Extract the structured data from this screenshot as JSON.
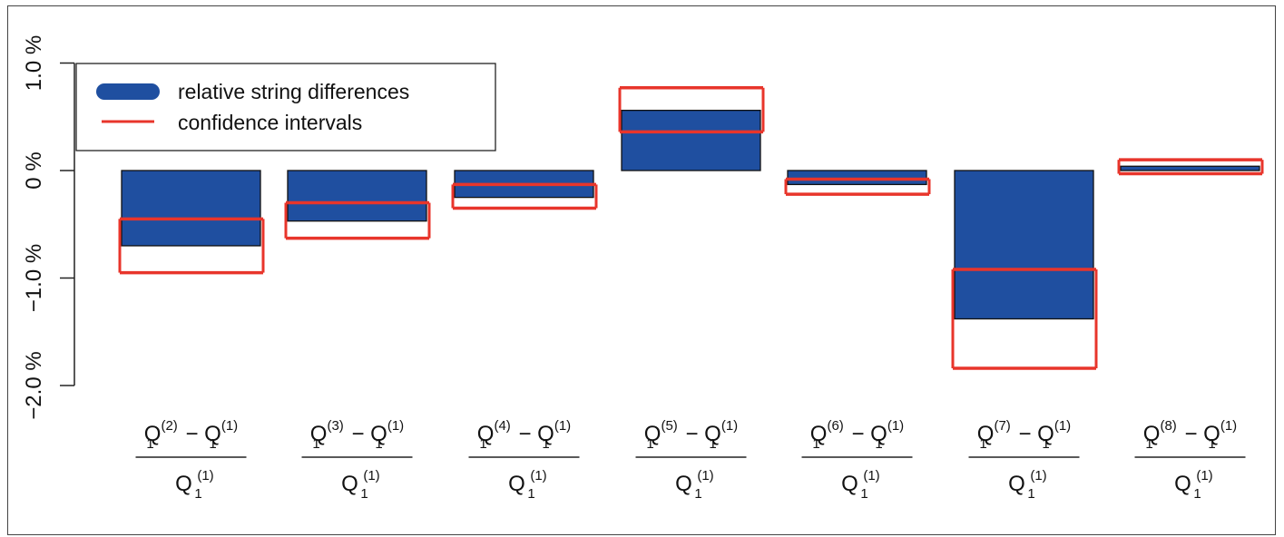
{
  "chart_data": {
    "type": "bar",
    "yticks": [
      {
        "value": 1.0,
        "label": "1.0 %"
      },
      {
        "value": 0.0,
        "label": "0 %"
      },
      {
        "value": -1.0,
        "label": "−1.0 %"
      },
      {
        "value": -2.0,
        "label": "−2.0 %"
      }
    ],
    "ylim": [
      -2.0,
      1.0
    ],
    "categories": [
      {
        "num_left": "Q",
        "num_left_sub": "1",
        "num_left_sup": "(2)",
        "minus": "−",
        "num_right": "Q",
        "num_right_sub": "1",
        "num_right_sup": "(1)",
        "den": "Q",
        "den_sub": "1",
        "den_sup": "(1)"
      },
      {
        "num_left": "Q",
        "num_left_sub": "1",
        "num_left_sup": "(3)",
        "minus": "−",
        "num_right": "Q",
        "num_right_sub": "1",
        "num_right_sup": "(1)",
        "den": "Q",
        "den_sub": "1",
        "den_sup": "(1)"
      },
      {
        "num_left": "Q",
        "num_left_sub": "1",
        "num_left_sup": "(4)",
        "minus": "−",
        "num_right": "Q",
        "num_right_sub": "1",
        "num_right_sup": "(1)",
        "den": "Q",
        "den_sub": "1",
        "den_sup": "(1)"
      },
      {
        "num_left": "Q",
        "num_left_sub": "1",
        "num_left_sup": "(5)",
        "minus": "−",
        "num_right": "Q",
        "num_right_sub": "1",
        "num_right_sup": "(1)",
        "den": "Q",
        "den_sub": "1",
        "den_sup": "(1)"
      },
      {
        "num_left": "Q",
        "num_left_sub": "1",
        "num_left_sup": "(6)",
        "minus": "−",
        "num_right": "Q",
        "num_right_sub": "1",
        "num_right_sup": "(1)",
        "den": "Q",
        "den_sub": "1",
        "den_sup": "(1)"
      },
      {
        "num_left": "Q",
        "num_left_sub": "1",
        "num_left_sup": "(7)",
        "minus": "−",
        "num_right": "Q",
        "num_right_sub": "1",
        "num_right_sup": "(1)",
        "den": "Q",
        "den_sub": "1",
        "den_sup": "(1)"
      },
      {
        "num_left": "Q",
        "num_left_sub": "1",
        "num_left_sup": "(8)",
        "minus": "−",
        "num_right": "Q",
        "num_right_sub": "1",
        "num_right_sup": "(1)",
        "den": "Q",
        "den_sub": "1",
        "den_sup": "(1)"
      }
    ],
    "series": [
      {
        "name": "relative string differences",
        "color": "#1f4fa0",
        "values": [
          -0.7,
          -0.47,
          -0.25,
          0.56,
          -0.13,
          -1.38,
          0.04
        ]
      },
      {
        "name": "confidence intervals",
        "color": "#e8352b",
        "lower": [
          -0.95,
          -0.63,
          -0.35,
          0.36,
          -0.22,
          -1.84,
          -0.03
        ],
        "upper": [
          -0.45,
          -0.3,
          -0.13,
          0.77,
          -0.08,
          -0.92,
          0.1
        ]
      }
    ],
    "legend": {
      "position": "top-left",
      "entries": [
        "relative string differences",
        "confidence intervals"
      ]
    },
    "grid": false,
    "title": "",
    "xlabel": "",
    "ylabel": ""
  }
}
